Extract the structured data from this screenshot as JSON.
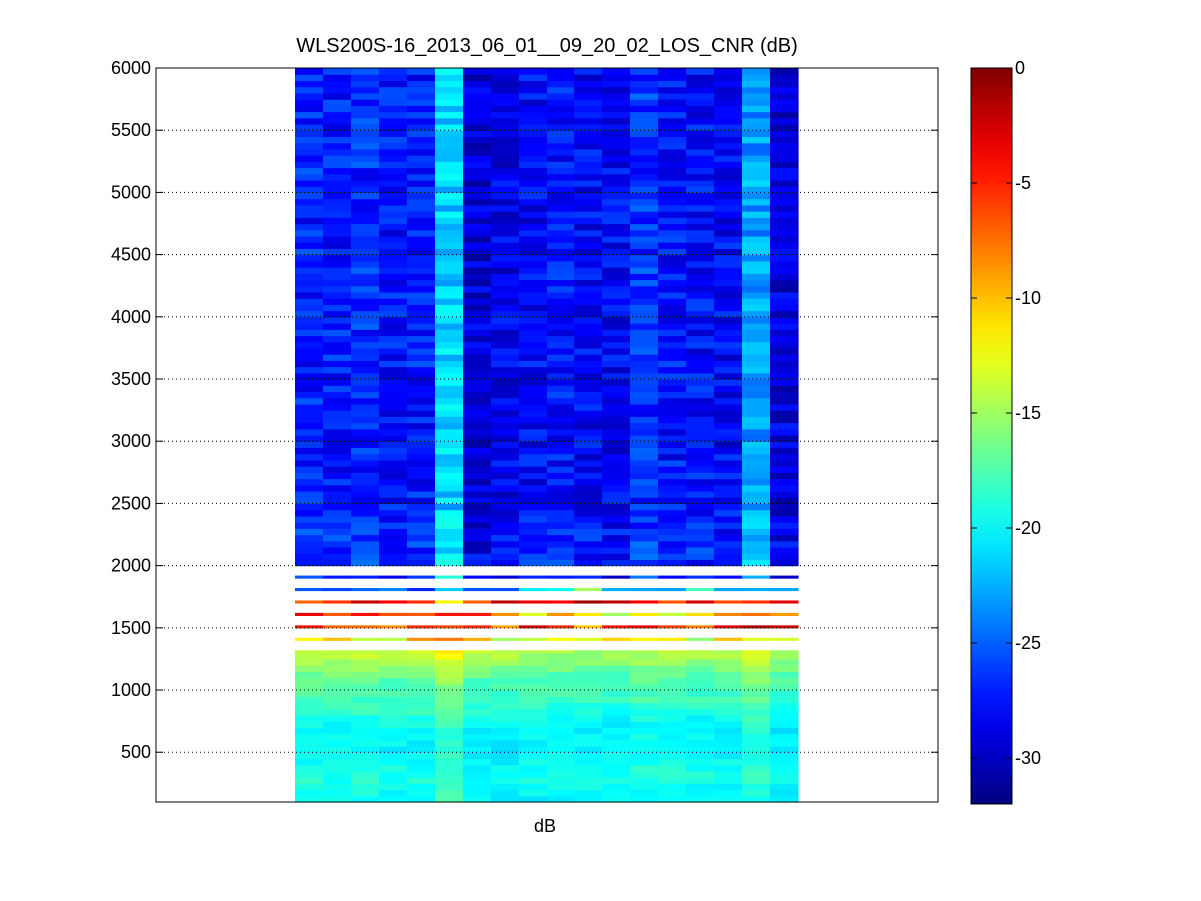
{
  "chart_data": {
    "type": "heatmap",
    "title": "WLS200S-16_2013_06_01__09_20_02_LOS_CNR (dB)",
    "xlabel": "dB",
    "ylabel": "",
    "ylim": [
      100,
      6000
    ],
    "y_ticks": [
      "500",
      "1000",
      "1500",
      "2000",
      "2500",
      "3000",
      "3500",
      "4000",
      "4500",
      "5000",
      "5500",
      "6000"
    ],
    "y_range_gates": [
      100,
      6000
    ],
    "n_columns": 18,
    "grid": "horizontal dotted at y ticks",
    "colormap": "jet",
    "colorbar": {
      "range": [
        -32,
        0
      ],
      "ticks": [
        "0",
        "-5",
        "-10",
        "-15",
        "-20",
        "-25",
        "-30"
      ],
      "location": "right"
    },
    "profile_cnr_db": {
      "altitude_m": [
        100,
        300,
        500,
        700,
        900,
        1100,
        1300,
        1420,
        1500,
        1580,
        1650,
        1720,
        1780,
        1850,
        2000,
        2500,
        3000,
        4000,
        5000,
        6000
      ],
      "cnr_db": [
        -20,
        -19,
        -20,
        -20,
        -18,
        -17,
        -14,
        -12,
        -4,
        -12,
        -3,
        -4,
        -20,
        -27,
        -26,
        -27,
        -27,
        -27,
        -27,
        -27
      ]
    },
    "column_offsets_db": [
      0,
      -0.3,
      0.2,
      -0.5,
      -0.2,
      5.5,
      -2,
      -1.5,
      -1,
      -0.5,
      -1,
      -1.2,
      0.5,
      -0.5,
      -0.7,
      -1,
      4,
      -2
    ],
    "boundary_layer_top_m": [
      1780,
      1780,
      1790,
      1790,
      1780,
      1760,
      1780,
      1790,
      1820,
      1840,
      1850,
      1830,
      1820,
      1820,
      1830,
      1820,
      1820,
      1820
    ]
  }
}
